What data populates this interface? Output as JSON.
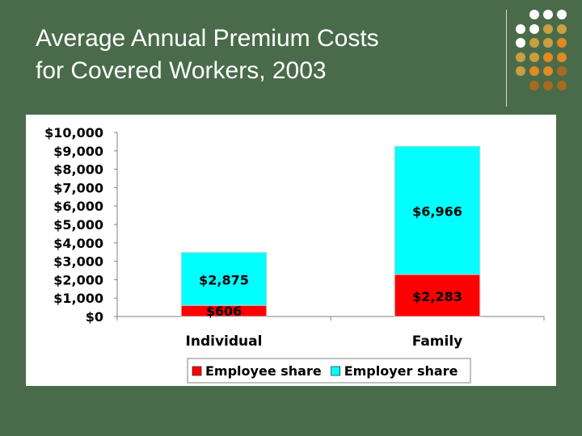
{
  "slide": {
    "title_line1": "Average Annual Premium Costs",
    "title_line2": "for Covered Workers, 2003"
  },
  "decoration": {
    "dot_colors": [
      "#ffffff",
      "#c8a040",
      "#e08a20",
      "#a86a20"
    ]
  },
  "chart_data": {
    "type": "bar",
    "stacked": true,
    "categories": [
      "Individual",
      "Family"
    ],
    "series": [
      {
        "name": "Employee share",
        "values": [
          606,
          2283
        ],
        "labels": [
          "$606",
          "$2,283"
        ],
        "color": "#ff0000"
      },
      {
        "name": "Employer share",
        "values": [
          2875,
          6966
        ],
        "labels": [
          "$2,875",
          "$6,966"
        ],
        "color": "#00ffff"
      }
    ],
    "ylim": [
      0,
      10000
    ],
    "yticks": [
      "$0",
      "$1,000",
      "$2,000",
      "$3,000",
      "$4,000",
      "$5,000",
      "$6,000",
      "$7,000",
      "$8,000",
      "$9,000",
      "$10,000"
    ],
    "title": "",
    "xlabel": "",
    "ylabel": "",
    "grid": false,
    "legend": "bottom"
  }
}
